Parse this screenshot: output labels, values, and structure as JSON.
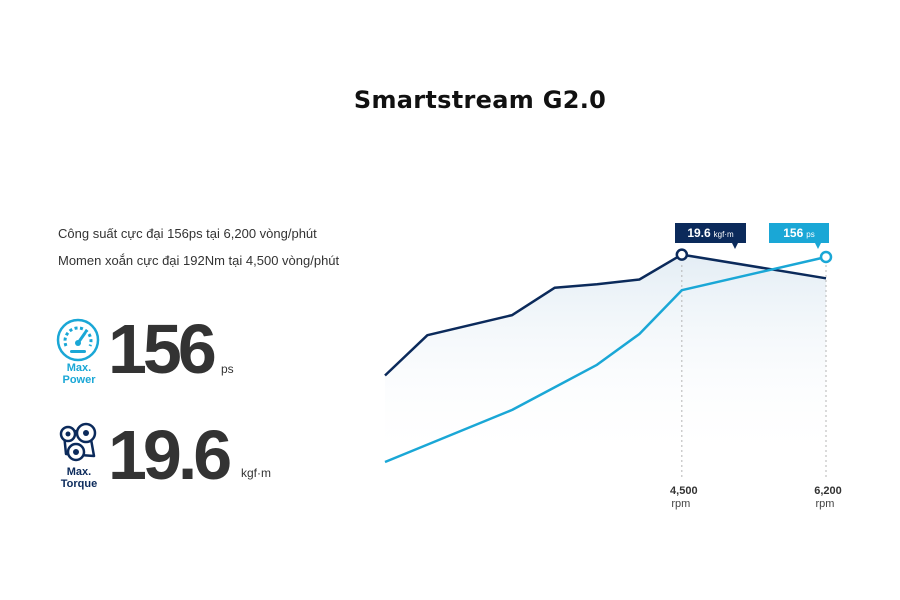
{
  "title": "Smartstream G2.0",
  "description": {
    "line1": "Công suất cực đại 156ps tại 6,200 vòng/phút",
    "line2": "Momen xoắn cực đại 192Nm tại 4,500 vòng/phút"
  },
  "specs": {
    "power": {
      "caption_line1": "Max.",
      "caption_line2": "Power",
      "value": "156",
      "unit": "ps",
      "icon": "speedometer-icon"
    },
    "torque": {
      "caption_line1": "Max.",
      "caption_line2": "Torque",
      "value": "19.6",
      "unit": "kgf·m",
      "icon": "engine-belt-icon"
    }
  },
  "colors": {
    "torque": "#0b2a5b",
    "power": "#1aa7d6",
    "accent_text": "#1aa7d6",
    "fill": "#e9f1f7"
  },
  "chart_data": {
    "type": "line",
    "title": "",
    "xlabel": "",
    "ylabel": "",
    "x_ticks": [
      {
        "value": 4500,
        "label_line1": "4,500",
        "label_line2": "rpm"
      },
      {
        "value": 6200,
        "label_line1": "6,200",
        "label_line2": "rpm"
      }
    ],
    "series": [
      {
        "name": "torque",
        "points": [
          [
            1000,
            0.365
          ],
          [
            1500,
            0.535
          ],
          [
            2500,
            0.62
          ],
          [
            3000,
            0.735
          ],
          [
            3500,
            0.75
          ],
          [
            4000,
            0.77
          ],
          [
            4500,
            0.875
          ],
          [
            6200,
            0.775
          ]
        ],
        "peak_x": 4500,
        "label_value": "19.6",
        "label_unit": "kgf·m"
      },
      {
        "name": "power",
        "points": [
          [
            1000,
            0.0
          ],
          [
            2500,
            0.22
          ],
          [
            3500,
            0.41
          ],
          [
            4000,
            0.54
          ],
          [
            4500,
            0.725
          ],
          [
            6200,
            0.865
          ]
        ],
        "peak_x": 6200,
        "label_value": "156",
        "label_unit": "ps"
      }
    ]
  }
}
